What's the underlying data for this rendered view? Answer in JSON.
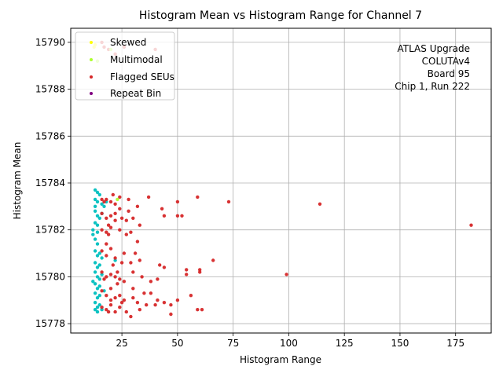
{
  "chart_data": {
    "type": "scatter",
    "title": "Histogram Mean vs Histogram Range for Channel 7",
    "xlabel": "Histogram Range",
    "ylabel": "Histogram Mean",
    "xlim": [
      2,
      191
    ],
    "ylim": [
      15777.6,
      15790.6
    ],
    "xticks": [
      "25",
      "50",
      "75",
      "100",
      "125",
      "150",
      "175"
    ],
    "xtick_values": [
      25,
      50,
      75,
      100,
      125,
      150,
      175
    ],
    "yticks": [
      "15778",
      "15780",
      "15782",
      "15784",
      "15786",
      "15788",
      "15790"
    ],
    "ytick_values": [
      15778,
      15780,
      15782,
      15784,
      15786,
      15788,
      15790
    ],
    "grid": true,
    "legend_position": "top-left",
    "annotation": [
      "ATLAS Upgrade",
      "COLUTAv4",
      "Board 95",
      "Chip 1, Run 222"
    ],
    "series": [
      {
        "name": "Skewed",
        "color": "#ffff00",
        "points": [
          [
            12.5,
            15789.8
          ],
          [
            13,
            15789.9
          ]
        ]
      },
      {
        "name": "Multimodal",
        "color": "#adff2f",
        "points": [
          [
            14,
            15789.2
          ],
          [
            20,
            15789.7
          ],
          [
            23,
            15783.3
          ]
        ]
      },
      {
        "name": "Flagged SEUs",
        "color": "#d62728",
        "points": [
          [
            16,
            15790.0
          ],
          [
            17,
            15789.8
          ],
          [
            19,
            15789.7
          ],
          [
            22,
            15789.5
          ],
          [
            26,
            15789.8
          ],
          [
            40,
            15789.7
          ],
          [
            16,
            15783.3
          ],
          [
            18,
            15783.3
          ],
          [
            20,
            15783.2
          ],
          [
            22,
            15783.1
          ],
          [
            24,
            15783.4
          ],
          [
            28,
            15783.3
          ],
          [
            32,
            15783.0
          ],
          [
            37,
            15783.4
          ],
          [
            43,
            15782.9
          ],
          [
            50,
            15783.2
          ],
          [
            59,
            15783.4
          ],
          [
            73,
            15783.2
          ],
          [
            114,
            15783.1
          ],
          [
            182,
            15782.2
          ],
          [
            16,
            15782.7
          ],
          [
            18,
            15782.5
          ],
          [
            20,
            15782.6
          ],
          [
            22,
            15782.7
          ],
          [
            25,
            15782.5
          ],
          [
            27,
            15782.4
          ],
          [
            30,
            15782.5
          ],
          [
            33,
            15782.2
          ],
          [
            44,
            15782.6
          ],
          [
            50,
            15782.6
          ],
          [
            52,
            15782.6
          ],
          [
            16,
            15782.0
          ],
          [
            18,
            15781.9
          ],
          [
            20,
            15782.1
          ],
          [
            24,
            15782.0
          ],
          [
            27,
            15781.8
          ],
          [
            29,
            15781.9
          ],
          [
            32,
            15781.5
          ],
          [
            19,
            15781.8
          ],
          [
            16,
            15781.1
          ],
          [
            18,
            15780.9
          ],
          [
            20,
            15781.2
          ],
          [
            22,
            15780.8
          ],
          [
            25,
            15780.6
          ],
          [
            29,
            15780.6
          ],
          [
            33,
            15780.7
          ],
          [
            42,
            15780.5
          ],
          [
            44,
            15780.4
          ],
          [
            54,
            15780.3
          ],
          [
            60,
            15780.2
          ],
          [
            66,
            15780.7
          ],
          [
            16,
            15780.2
          ],
          [
            18,
            15780.0
          ],
          [
            20,
            15780.1
          ],
          [
            22,
            15780.0
          ],
          [
            24,
            15779.9
          ],
          [
            26,
            15779.8
          ],
          [
            30,
            15780.2
          ],
          [
            34,
            15780.0
          ],
          [
            38,
            15779.8
          ],
          [
            41,
            15779.9
          ],
          [
            54,
            15780.1
          ],
          [
            60,
            15780.3
          ],
          [
            99,
            15780.1
          ],
          [
            16,
            15779.4
          ],
          [
            18,
            15779.2
          ],
          [
            20,
            15779.5
          ],
          [
            22,
            15779.1
          ],
          [
            24,
            15779.2
          ],
          [
            26,
            15779.0
          ],
          [
            30,
            15779.1
          ],
          [
            32,
            15778.9
          ],
          [
            36,
            15778.8
          ],
          [
            38,
            15779.3
          ],
          [
            41,
            15779.0
          ],
          [
            44,
            15778.9
          ],
          [
            47,
            15778.8
          ],
          [
            50,
            15779.0
          ],
          [
            56,
            15779.2
          ],
          [
            16,
            15778.7
          ],
          [
            18,
            15778.6
          ],
          [
            20,
            15778.8
          ],
          [
            22,
            15778.5
          ],
          [
            24,
            15778.7
          ],
          [
            27,
            15778.5
          ],
          [
            29,
            15778.3
          ],
          [
            33,
            15778.6
          ],
          [
            40,
            15778.8
          ],
          [
            47,
            15778.4
          ],
          [
            59,
            15778.6
          ],
          [
            61,
            15778.6
          ],
          [
            17,
            15783.2
          ],
          [
            19,
            15782.2
          ],
          [
            21,
            15780.5
          ],
          [
            23,
            15779.7
          ],
          [
            25,
            15778.9
          ],
          [
            28,
            15782.8
          ],
          [
            31,
            15781.0
          ],
          [
            35,
            15779.3
          ],
          [
            21,
            15783.5
          ],
          [
            24,
            15782.9
          ],
          [
            17,
            15779.9
          ],
          [
            19,
            15778.5
          ],
          [
            18,
            15781.4
          ],
          [
            23,
            15780.2
          ],
          [
            26,
            15781.0
          ],
          [
            30,
            15779.5
          ],
          [
            22,
            15782.4
          ],
          [
            20,
            15779.0
          ]
        ]
      },
      {
        "name": "Repeat Bin",
        "color": "#800080",
        "points": []
      },
      {
        "name": "",
        "color": "#00bfbf",
        "points": [
          [
            13,
            15783.7
          ],
          [
            14,
            15783.6
          ],
          [
            15,
            15783.5
          ],
          [
            13,
            15783.3
          ],
          [
            14,
            15783.2
          ],
          [
            16,
            15783.1
          ],
          [
            17,
            15783.0
          ],
          [
            13,
            15782.8
          ],
          [
            14,
            15782.6
          ],
          [
            15,
            15782.5
          ],
          [
            16,
            15782.7
          ],
          [
            13,
            15782.3
          ],
          [
            14,
            15782.2
          ],
          [
            12,
            15782.0
          ],
          [
            12,
            15781.8
          ],
          [
            13,
            15781.6
          ],
          [
            14,
            15781.4
          ],
          [
            13,
            15781.1
          ],
          [
            14,
            15780.9
          ],
          [
            15,
            15781.0
          ],
          [
            16,
            15780.8
          ],
          [
            13,
            15780.6
          ],
          [
            14,
            15780.4
          ],
          [
            15,
            15780.5
          ],
          [
            13,
            15780.2
          ],
          [
            14,
            15780.0
          ],
          [
            16,
            15780.1
          ],
          [
            12,
            15779.8
          ],
          [
            13,
            15779.7
          ],
          [
            14,
            15779.5
          ],
          [
            15,
            15779.6
          ],
          [
            13,
            15779.3
          ],
          [
            14,
            15779.1
          ],
          [
            15,
            15779.2
          ],
          [
            13,
            15778.9
          ],
          [
            14,
            15778.7
          ],
          [
            15,
            15778.8
          ],
          [
            13,
            15778.6
          ],
          [
            14,
            15778.5
          ],
          [
            16,
            15778.6
          ],
          [
            18,
            15783.2
          ],
          [
            22,
            15780.7
          ],
          [
            17,
            15779.4
          ],
          [
            13,
            15783.0
          ],
          [
            14,
            15781.9
          ],
          [
            15,
            15779.9
          ]
        ]
      }
    ]
  }
}
